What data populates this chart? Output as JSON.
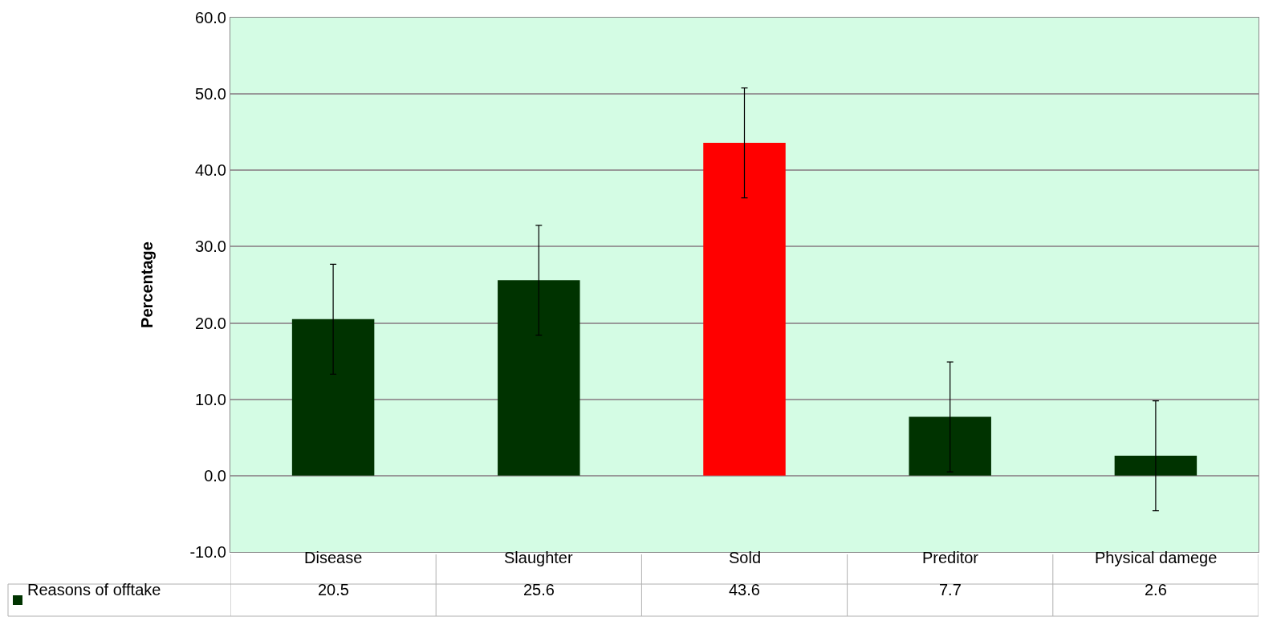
{
  "chart_data": {
    "type": "bar",
    "ylabel": "Percentage",
    "categories": [
      "Disease",
      "Slaughter",
      "Sold",
      "Preditor",
      "Physical damege"
    ],
    "series": [
      {
        "name": "Reasons of offtake",
        "color": "#003300",
        "colors": [
          "#003300",
          "#003300",
          "#ff0000",
          "#003300",
          "#003300"
        ],
        "values": [
          20.5,
          25.6,
          43.6,
          7.7,
          2.6
        ],
        "errors": [
          7.2,
          7.2,
          7.2,
          7.2,
          7.2
        ]
      }
    ],
    "ylim": [
      -10,
      60
    ],
    "yticks": [
      {
        "value": -10,
        "label": "-10.0"
      },
      {
        "value": 0,
        "label": "0.0"
      },
      {
        "value": 10,
        "label": "10.0"
      },
      {
        "value": 20,
        "label": "20.0"
      },
      {
        "value": 30,
        "label": "30.0"
      },
      {
        "value": 40,
        "label": "40.0"
      },
      {
        "value": 50,
        "label": "50.0"
      },
      {
        "value": 60,
        "label": "60.0"
      }
    ],
    "grid": "y",
    "data_labels": true
  }
}
